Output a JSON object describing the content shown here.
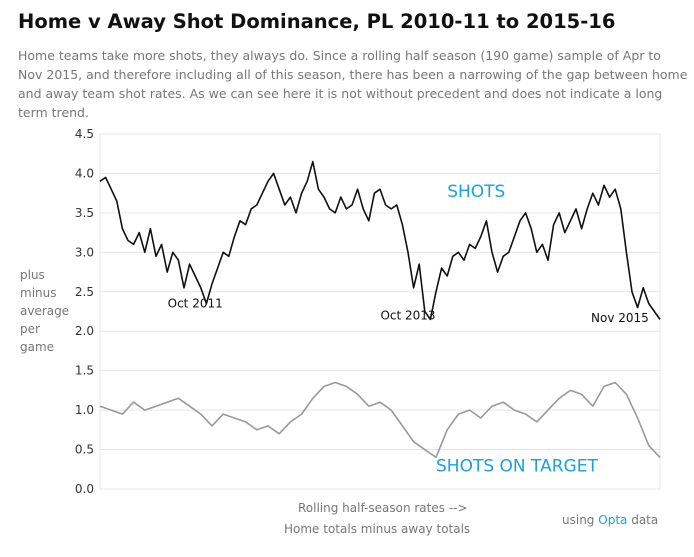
{
  "header": {
    "title": "Home v Away Shot Dominance, PL 2010-11 to 2015-16",
    "subtitle": "Home teams take more shots, they always do. Since a rolling half season (190 game) sample of Apr to Nov 2015, and therefore including all of this season, there has been a narrowing of the gap between home and away team shot rates. As we can see here it is not without precedent and does not indicate a long term trend."
  },
  "footer": {
    "xcaption_line1": "Rolling half-season rates -->",
    "xcaption_line2": "Home totals minus away totals",
    "credit_prefix": "using",
    "credit_source": "Opta",
    "credit_suffix": "data"
  },
  "colors": {
    "shots": "#111111",
    "on_target": "#999999",
    "accent": "#1aa0db",
    "grid": "#e4e4f0"
  },
  "chart_data": {
    "type": "line",
    "title": "Home v Away Shot Dominance, PL 2010-11 to 2015-16",
    "ylabel": [
      "plus",
      "minus",
      "average",
      "per",
      "game"
    ],
    "ylim": [
      0,
      4.5
    ],
    "yticks": [
      "0.0",
      "0.5",
      "1.0",
      "1.5",
      "2.0",
      "2.5",
      "3.0",
      "3.5",
      "4.0",
      "4.5"
    ],
    "grid": true,
    "x_description": "rolling half-season samples, 2010-11 to 2015-16",
    "annotations": [
      {
        "text": "Oct 2011",
        "x": 0.17,
        "y": 2.3
      },
      {
        "text": "Oct 2013",
        "x": 0.55,
        "y": 2.15
      },
      {
        "text": "Nov 2015",
        "x": 0.98,
        "y": 2.12
      }
    ],
    "series": [
      {
        "name": "SHOTS",
        "label_at": {
          "x": 0.62,
          "y": 3.7
        },
        "x": [
          0,
          0.01,
          0.02,
          0.03,
          0.04,
          0.05,
          0.06,
          0.07,
          0.08,
          0.09,
          0.1,
          0.11,
          0.12,
          0.13,
          0.14,
          0.15,
          0.16,
          0.17,
          0.18,
          0.19,
          0.2,
          0.21,
          0.22,
          0.23,
          0.24,
          0.25,
          0.26,
          0.27,
          0.28,
          0.29,
          0.3,
          0.31,
          0.32,
          0.33,
          0.34,
          0.35,
          0.36,
          0.37,
          0.38,
          0.39,
          0.4,
          0.41,
          0.42,
          0.43,
          0.44,
          0.45,
          0.46,
          0.47,
          0.48,
          0.49,
          0.5,
          0.51,
          0.52,
          0.53,
          0.54,
          0.55,
          0.56,
          0.57,
          0.58,
          0.59,
          0.6,
          0.61,
          0.62,
          0.63,
          0.64,
          0.65,
          0.66,
          0.67,
          0.68,
          0.69,
          0.7,
          0.71,
          0.72,
          0.73,
          0.74,
          0.75,
          0.76,
          0.77,
          0.78,
          0.79,
          0.8,
          0.81,
          0.82,
          0.83,
          0.84,
          0.85,
          0.86,
          0.87,
          0.88,
          0.89,
          0.9,
          0.91,
          0.92,
          0.93,
          0.94,
          0.95,
          0.96,
          0.97,
          0.98,
          0.99,
          1
        ],
        "values": [
          3.9,
          3.95,
          3.8,
          3.65,
          3.3,
          3.15,
          3.1,
          3.25,
          3.0,
          3.3,
          2.95,
          3.1,
          2.75,
          3.0,
          2.9,
          2.55,
          2.85,
          2.7,
          2.55,
          2.35,
          2.6,
          2.8,
          3.0,
          2.95,
          3.2,
          3.4,
          3.35,
          3.55,
          3.6,
          3.75,
          3.9,
          4.0,
          3.8,
          3.6,
          3.7,
          3.5,
          3.75,
          3.9,
          4.15,
          3.8,
          3.7,
          3.55,
          3.5,
          3.7,
          3.55,
          3.6,
          3.8,
          3.55,
          3.4,
          3.75,
          3.8,
          3.6,
          3.55,
          3.6,
          3.35,
          3.0,
          2.55,
          2.85,
          2.25,
          2.15,
          2.5,
          2.8,
          2.7,
          2.95,
          3.0,
          2.9,
          3.1,
          3.05,
          3.2,
          3.4,
          3.0,
          2.75,
          2.95,
          3.0,
          3.2,
          3.4,
          3.5,
          3.3,
          3.0,
          3.1,
          2.9,
          3.35,
          3.5,
          3.25,
          3.4,
          3.55,
          3.3,
          3.55,
          3.75,
          3.6,
          3.85,
          3.7,
          3.8,
          3.55,
          3.0,
          2.5,
          2.3,
          2.55,
          2.35,
          2.25,
          2.15
        ]
      },
      {
        "name": "SHOTS ON TARGET",
        "label_at": {
          "x": 0.6,
          "y": 0.22
        },
        "x": [
          0,
          0.02,
          0.04,
          0.06,
          0.08,
          0.1,
          0.12,
          0.14,
          0.16,
          0.18,
          0.2,
          0.22,
          0.24,
          0.26,
          0.28,
          0.3,
          0.32,
          0.34,
          0.36,
          0.38,
          0.4,
          0.42,
          0.44,
          0.46,
          0.48,
          0.5,
          0.52,
          0.54,
          0.56,
          0.58,
          0.6,
          0.62,
          0.64,
          0.66,
          0.68,
          0.7,
          0.72,
          0.74,
          0.76,
          0.78,
          0.8,
          0.82,
          0.84,
          0.86,
          0.88,
          0.9,
          0.92,
          0.94,
          0.96,
          0.98,
          1
        ],
        "values": [
          1.05,
          1.0,
          0.95,
          1.1,
          1.0,
          1.05,
          1.1,
          1.15,
          1.05,
          0.95,
          0.8,
          0.95,
          0.9,
          0.85,
          0.75,
          0.8,
          0.7,
          0.85,
          0.95,
          1.15,
          1.3,
          1.35,
          1.3,
          1.2,
          1.05,
          1.1,
          1.0,
          0.8,
          0.6,
          0.5,
          0.4,
          0.75,
          0.95,
          1.0,
          0.9,
          1.05,
          1.1,
          1.0,
          0.95,
          0.85,
          1.0,
          1.15,
          1.25,
          1.2,
          1.05,
          1.3,
          1.35,
          1.2,
          0.9,
          0.55,
          0.4
        ]
      }
    ]
  }
}
